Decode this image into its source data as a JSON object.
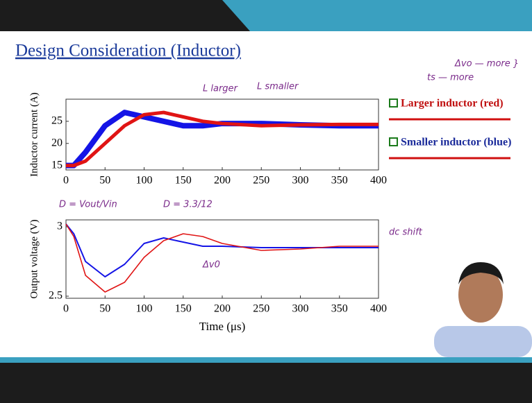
{
  "slide": {
    "title": "Design Consideration (Inductor)",
    "legend": [
      "Larger inductor (red)",
      "Smaller inductor (blue)"
    ],
    "annotations": [
      "L larger",
      "L smaller",
      "ts — more",
      "Δvo — more }",
      "D = Vout/Vin",
      "D = 3.3/12",
      "Δv0",
      "dc shift"
    ]
  },
  "chart_data": [
    {
      "type": "line",
      "ylabel": "Inductor current (A)",
      "x": [
        0,
        10,
        25,
        50,
        75,
        100,
        125,
        150,
        175,
        200,
        250,
        300,
        350,
        400
      ],
      "xlim": [
        0,
        400
      ],
      "xticks": [
        0,
        50,
        100,
        150,
        200,
        250,
        300,
        350,
        400
      ],
      "ylim": [
        14,
        30
      ],
      "yticks": [
        15,
        20,
        25
      ],
      "series": [
        {
          "name": "Smaller inductor (blue)",
          "color": "#1414e6",
          "values": [
            15,
            15,
            18,
            24,
            27,
            26,
            25,
            24,
            24,
            24.5,
            24.5,
            24.2,
            24,
            24
          ]
        },
        {
          "name": "Larger inductor (red)",
          "color": "#e01414",
          "values": [
            15,
            15,
            16,
            20,
            24,
            26.5,
            27,
            26,
            25,
            24.5,
            24,
            24.2,
            24.3,
            24.3
          ]
        }
      ]
    },
    {
      "type": "line",
      "ylabel": "Output voltage (V)",
      "xlabel": "Time (μs)",
      "x": [
        0,
        10,
        25,
        50,
        75,
        100,
        125,
        150,
        175,
        200,
        250,
        300,
        350,
        400
      ],
      "xlim": [
        0,
        400
      ],
      "xticks": [
        0,
        50,
        100,
        150,
        200,
        250,
        300,
        350,
        400
      ],
      "ylim": [
        2.485,
        3.05
      ],
      "yticks": [
        2.5,
        3
      ],
      "series": [
        {
          "name": "Smaller inductor (blue)",
          "color": "#1414e6",
          "values": [
            3.02,
            2.95,
            2.75,
            2.64,
            2.73,
            2.88,
            2.92,
            2.89,
            2.86,
            2.86,
            2.85,
            2.85,
            2.85,
            2.85
          ]
        },
        {
          "name": "Larger inductor (red)",
          "color": "#e01414",
          "values": [
            3.02,
            2.93,
            2.65,
            2.53,
            2.6,
            2.78,
            2.9,
            2.95,
            2.93,
            2.88,
            2.83,
            2.84,
            2.86,
            2.86
          ]
        }
      ]
    }
  ]
}
